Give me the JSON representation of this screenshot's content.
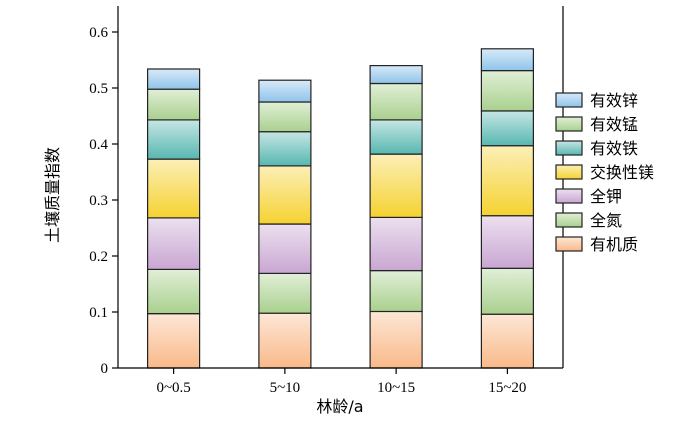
{
  "chart_data": {
    "type": "bar",
    "stacked": true,
    "xlabel": "林龄/a",
    "ylabel": "土壤质量指数",
    "ylim": [
      0,
      0.6
    ],
    "yticks": [
      "0",
      "0.1",
      "0.2",
      "0.3",
      "0.4",
      "0.5",
      "0.6"
    ],
    "categories": [
      "0~0.5",
      "5~10",
      "10~15",
      "15~20"
    ],
    "legend_position": "right",
    "series": [
      {
        "name": "有机质",
        "color": "#f9b98a",
        "values": [
          0.097,
          0.098,
          0.101,
          0.096
        ]
      },
      {
        "name": "全氮",
        "color": "#a9d08e",
        "values": [
          0.079,
          0.071,
          0.073,
          0.082
        ]
      },
      {
        "name": "全钾",
        "color": "#c9a6d2",
        "values": [
          0.092,
          0.088,
          0.095,
          0.094
        ]
      },
      {
        "name": "交换性镁",
        "color": "#f5d230",
        "values": [
          0.105,
          0.104,
          0.113,
          0.125
        ]
      },
      {
        "name": "有效铁",
        "color": "#58b7b1",
        "values": [
          0.07,
          0.061,
          0.061,
          0.062
        ]
      },
      {
        "name": "有效锰",
        "color": "#a9d08e",
        "values": [
          0.055,
          0.053,
          0.065,
          0.072
        ]
      },
      {
        "name": "有效锌",
        "color": "#8fc3eb",
        "values": [
          0.036,
          0.039,
          0.032,
          0.039
        ]
      }
    ]
  }
}
